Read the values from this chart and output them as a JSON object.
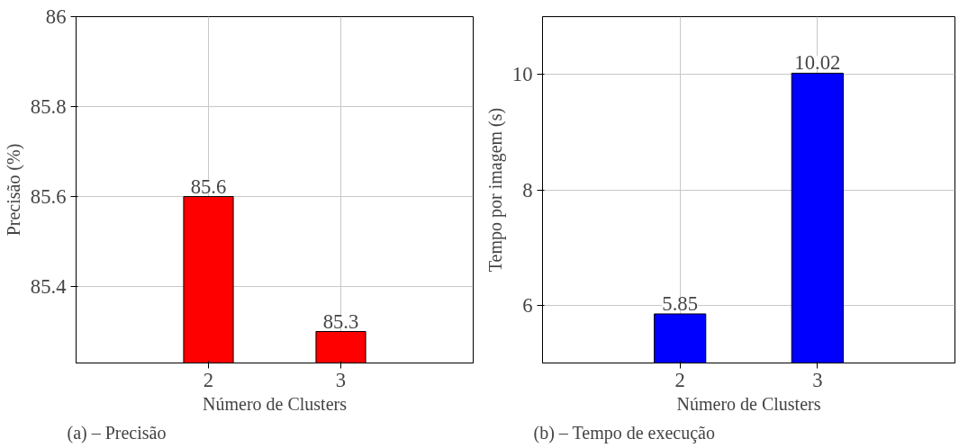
{
  "chart_data": [
    {
      "type": "bar",
      "categories": [
        "2",
        "3"
      ],
      "values": [
        85.6,
        85.3
      ],
      "color": "#ff0000",
      "xlabel": "Número de Clusters",
      "ylabel": "Precisão (%)",
      "ylim": [
        85.23,
        86
      ],
      "yticks": [
        85.4,
        85.6,
        85.8,
        86
      ],
      "grid": true,
      "data_labels": true,
      "annotations": [
        "(a) – Precisão"
      ]
    },
    {
      "type": "bar",
      "categories": [
        "2",
        "3"
      ],
      "values": [
        5.85,
        10.02
      ],
      "color": "#0000ff",
      "xlabel": "Número de Clusters",
      "ylabel": "Tempo por imagem (s)",
      "ylim": [
        5,
        11
      ],
      "yticks": [
        6,
        8,
        10
      ],
      "grid": true,
      "data_labels": true,
      "annotations": [
        "(b) – Tempo de execução"
      ]
    }
  ]
}
